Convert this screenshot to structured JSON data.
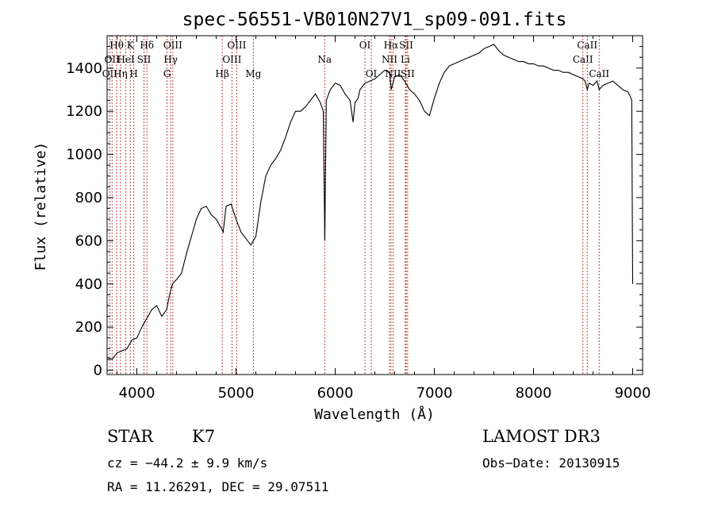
{
  "chart_data": {
    "type": "line",
    "title": "spec-56551-VB010N27V1_sp09-091.fits",
    "xlabel": "Wavelength (Å)",
    "ylabel": "Flux (relative)",
    "xlim": [
      3700,
      9100
    ],
    "ylim": [
      -20,
      1550
    ],
    "x_ticks": [
      4000,
      5000,
      6000,
      7000,
      8000,
      9000
    ],
    "y_ticks": [
      0,
      200,
      400,
      600,
      800,
      1000,
      1200,
      1400
    ],
    "grid": false,
    "series": [
      {
        "x": [
          3700,
          3750,
          3800,
          3850,
          3900,
          3950,
          4000,
          4050,
          4100,
          4150,
          4200,
          4250,
          4300,
          4330,
          4360,
          4400,
          4450,
          4500,
          4550,
          4600,
          4650,
          4700,
          4750,
          4800,
          4850,
          4870,
          4900,
          4950,
          5000,
          5050,
          5100,
          5150,
          5200,
          5250,
          5300,
          5350,
          5400,
          5450,
          5500,
          5550,
          5600,
          5650,
          5700,
          5750,
          5800,
          5850,
          5880,
          5895,
          5910,
          5950,
          6000,
          6050,
          6100,
          6150,
          6180,
          6200,
          6230,
          6250,
          6300,
          6350,
          6400,
          6450,
          6500,
          6550,
          6565,
          6600,
          6650,
          6700,
          6750,
          6800,
          6850,
          6900,
          6950,
          7000,
          7050,
          7100,
          7150,
          7200,
          7250,
          7300,
          7350,
          7400,
          7450,
          7500,
          7550,
          7600,
          7650,
          7700,
          7750,
          7800,
          7850,
          7900,
          7950,
          8000,
          8050,
          8100,
          8150,
          8200,
          8250,
          8300,
          8350,
          8400,
          8450,
          8500,
          8520,
          8542,
          8560,
          8600,
          8640,
          8662,
          8700,
          8750,
          8800,
          8850,
          8900,
          8950,
          8975,
          8990,
          9000
        ],
        "y": [
          60,
          50,
          80,
          90,
          100,
          140,
          150,
          200,
          240,
          280,
          300,
          250,
          280,
          350,
          400,
          420,
          450,
          540,
          620,
          700,
          750,
          760,
          720,
          700,
          660,
          640,
          760,
          770,
          700,
          640,
          610,
          580,
          620,
          780,
          900,
          950,
          980,
          1020,
          1080,
          1150,
          1200,
          1200,
          1220,
          1250,
          1280,
          1240,
          1200,
          600,
          1250,
          1300,
          1330,
          1320,
          1280,
          1250,
          1150,
          1240,
          1260,
          1300,
          1330,
          1340,
          1350,
          1370,
          1390,
          1380,
          1300,
          1360,
          1370,
          1340,
          1300,
          1280,
          1250,
          1200,
          1180,
          1260,
          1330,
          1380,
          1410,
          1420,
          1430,
          1440,
          1450,
          1460,
          1470,
          1490,
          1500,
          1510,
          1480,
          1460,
          1450,
          1440,
          1430,
          1430,
          1420,
          1420,
          1410,
          1410,
          1400,
          1390,
          1390,
          1380,
          1380,
          1370,
          1360,
          1350,
          1340,
          1300,
          1330,
          1320,
          1340,
          1300,
          1320,
          1330,
          1340,
          1320,
          1300,
          1290,
          1270,
          1250,
          400
        ]
      }
    ],
    "lines": [
      {
        "w": 3727,
        "label": "OII",
        "row": 2
      },
      {
        "w": 3750,
        "label": "OII",
        "row": 1
      },
      {
        "w": 3797,
        "label": "Hθ",
        "row": 0
      },
      {
        "w": 3835,
        "label": "Hη",
        "row": 2
      },
      {
        "w": 3889,
        "label": "HeI",
        "row": 1
      },
      {
        "w": 3934,
        "label": "K",
        "row": 0
      },
      {
        "w": 3969,
        "label": "H",
        "row": 2
      },
      {
        "w": 4072,
        "label": "SII",
        "row": 1
      },
      {
        "w": 4102,
        "label": "Hδ",
        "row": 0
      },
      {
        "w": 4305,
        "label": "G",
        "row": 2
      },
      {
        "w": 4341,
        "label": "Hγ",
        "row": 1
      },
      {
        "w": 4363,
        "label": "OIII",
        "row": 0
      },
      {
        "w": 4861,
        "label": "Hβ",
        "row": 2
      },
      {
        "w": 4959,
        "label": "OIII",
        "row": 1
      },
      {
        "w": 5007,
        "label": "OIII",
        "row": 0
      },
      {
        "w": 5175,
        "label": "Mg",
        "row": 2
      },
      {
        "w": 5894,
        "label": "Na",
        "row": 1
      },
      {
        "w": 6300,
        "label": "OI",
        "row": 0
      },
      {
        "w": 6364,
        "label": "OI",
        "row": 2
      },
      {
        "w": 6548,
        "label": "NII",
        "row": 1
      },
      {
        "w": 6563,
        "label": "Hα",
        "row": 0
      },
      {
        "w": 6583,
        "label": "NII",
        "row": 2
      },
      {
        "w": 6707,
        "label": "Li",
        "row": 1
      },
      {
        "w": 6716,
        "label": "SII",
        "row": 0
      },
      {
        "w": 6731,
        "label": "SII",
        "row": 2
      },
      {
        "w": 8498,
        "label": "CaII",
        "row": 1
      },
      {
        "w": 8542,
        "label": "CaII",
        "row": 0
      },
      {
        "w": 8662,
        "label": "CaII",
        "row": 2
      }
    ]
  },
  "info": {
    "object_class": "STAR",
    "subclass": "K7",
    "survey": "LAMOST DR3",
    "cz": "cz = −44.2 ± 9.9 km/s",
    "obs_date": "Obs−Date: 20130915",
    "radec": "RA =  11.26291, DEC =  29.07511"
  }
}
